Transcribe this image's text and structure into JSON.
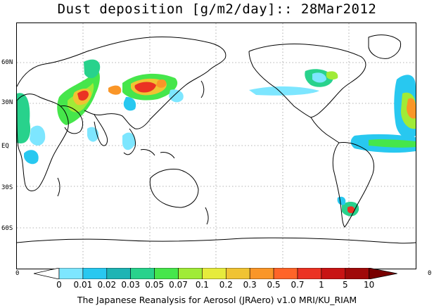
{
  "title": "Dust deposition [g/m2/day]:: 28Mar2012",
  "footer": "The Japanese Reanalysis for Aerosol (JRAero) v1.0 MRI/KU_RIAM",
  "lat_labels": [
    "60N",
    "30N",
    "EQ",
    "30S",
    "60S"
  ],
  "edge_labels": {
    "left": "0",
    "right": "0"
  },
  "colorbar": {
    "labels": [
      "0",
      "0.01",
      "0.02",
      "0.03",
      "0.05",
      "0.07",
      "0.1",
      "0.2",
      "0.3",
      "0.5",
      "0.7",
      "1",
      "5",
      "10"
    ],
    "colors": [
      "#ffffff",
      "#7de6ff",
      "#28c8f0",
      "#1eb4b4",
      "#28d28c",
      "#46e64b",
      "#a0eb37",
      "#e6eb3c",
      "#f0c332",
      "#fa9628",
      "#ff6428",
      "#eb3223",
      "#c81414",
      "#a00a0a",
      "#780000"
    ]
  }
}
